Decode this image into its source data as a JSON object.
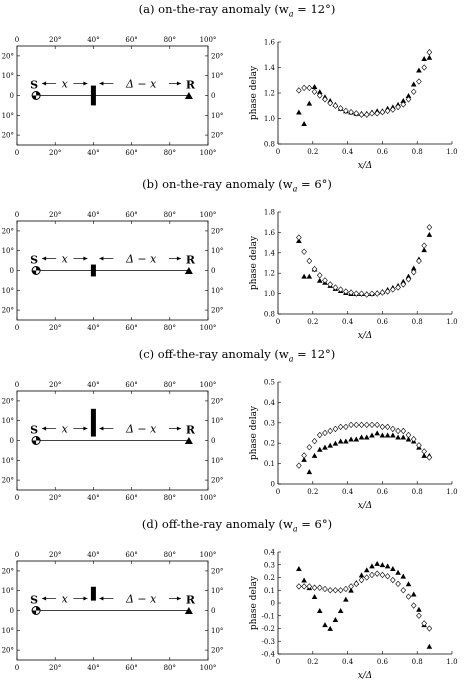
{
  "panels": [
    {
      "title": "(a) on-the-ray anomaly (w",
      "title_sub": "a",
      "title_tail": " = 12°)",
      "map": {
        "x_ticks": [
          "0",
          "20°",
          "40°",
          "60°",
          "80°",
          "100°"
        ],
        "y_ticks_left": [
          "20°",
          "10°",
          "0",
          "10°",
          "20°"
        ],
        "y_ticks_right": [
          "20°",
          "10°",
          "0",
          "10°",
          "20°"
        ],
        "source_label": "S",
        "receiver_label": "R",
        "left_distance_label": "x",
        "right_distance_label": "Δ − x",
        "anomaly": {
          "x": 40,
          "y_from": -5,
          "y_to": 5
        }
      }
    },
    {
      "title": "(b) on-the-ray anomaly (w",
      "title_sub": "a",
      "title_tail": " = 6°)",
      "map": {
        "x_ticks": [
          "0",
          "20°",
          "40°",
          "60°",
          "80°",
          "100°"
        ],
        "y_ticks_left": [
          "20°",
          "10°",
          "0",
          "10°",
          "20°"
        ],
        "y_ticks_right": [
          "20°",
          "10°",
          "0",
          "10°",
          "20°"
        ],
        "source_label": "S",
        "receiver_label": "R",
        "left_distance_label": "x",
        "right_distance_label": "Δ − x",
        "anomaly": {
          "x": 40,
          "y_from": -3,
          "y_to": 3
        }
      }
    },
    {
      "title": "(c) off-the-ray anomaly (w",
      "title_sub": "a",
      "title_tail": " = 12°)",
      "map": {
        "x_ticks": [
          "0",
          "20°",
          "40°",
          "60°",
          "80°",
          "100°"
        ],
        "y_ticks_left": [
          "20°",
          "10°",
          "0",
          "10°",
          "20°"
        ],
        "y_ticks_right": [
          "20°",
          "10°",
          "0",
          "10°",
          "20°"
        ],
        "source_label": "S",
        "receiver_label": "R",
        "left_distance_label": "x",
        "right_distance_label": "Δ − x",
        "anomaly": {
          "x": 40,
          "y_from": 2,
          "y_to": 16
        }
      }
    },
    {
      "title": "(d) off-the-ray anomaly (w",
      "title_sub": "a",
      "title_tail": " = 6°)",
      "map": {
        "x_ticks": [
          "0",
          "20°",
          "40°",
          "60°",
          "80°",
          "100°"
        ],
        "y_ticks_left": [
          "20°",
          "10°",
          "0",
          "10°",
          "20°"
        ],
        "y_ticks_right": [
          "20°",
          "10°",
          "0",
          "10°",
          "20°"
        ],
        "source_label": "S",
        "receiver_label": "R",
        "left_distance_label": "x",
        "right_distance_label": "Δ − x",
        "anomaly": {
          "x": 40,
          "y_from": 5,
          "y_to": 12
        }
      }
    }
  ],
  "chart_data": [
    {
      "type": "scatter",
      "xlabel": "x/Δ",
      "ylabel": "phase delay",
      "xlim": [
        0,
        1
      ],
      "ylim": [
        0.8,
        1.6
      ],
      "x_ticks": [
        0,
        0.2,
        0.4,
        0.6,
        0.8,
        1.0
      ],
      "x_tick_labels": [
        "0",
        "0.2",
        "0.4",
        "0.6",
        "0.8",
        "1.0"
      ],
      "y_ticks": [
        0.8,
        1.0,
        1.2,
        1.4,
        1.6
      ],
      "y_tick_labels": [
        "0.8",
        "1.0",
        "1.2",
        "1.4",
        "1.6"
      ],
      "series": [
        {
          "marker": "triangle",
          "x": [
            0.12,
            0.15,
            0.18,
            0.21,
            0.24,
            0.27,
            0.3,
            0.33,
            0.36,
            0.39,
            0.42,
            0.45,
            0.48,
            0.51,
            0.54,
            0.57,
            0.6,
            0.63,
            0.66,
            0.69,
            0.72,
            0.75,
            0.78,
            0.81,
            0.84,
            0.87
          ],
          "y": [
            1.05,
            0.96,
            1.12,
            1.25,
            1.21,
            1.17,
            1.14,
            1.11,
            1.08,
            1.06,
            1.05,
            1.04,
            1.04,
            1.04,
            1.05,
            1.06,
            1.06,
            1.08,
            1.09,
            1.11,
            1.14,
            1.18,
            1.27,
            1.38,
            1.47,
            1.48
          ]
        },
        {
          "marker": "diamond",
          "x": [
            0.12,
            0.15,
            0.18,
            0.21,
            0.24,
            0.27,
            0.3,
            0.33,
            0.36,
            0.39,
            0.42,
            0.45,
            0.48,
            0.51,
            0.54,
            0.57,
            0.6,
            0.63,
            0.66,
            0.69,
            0.72,
            0.75,
            0.78,
            0.81,
            0.84,
            0.87
          ],
          "y": [
            1.22,
            1.24,
            1.24,
            1.21,
            1.18,
            1.15,
            1.12,
            1.1,
            1.08,
            1.06,
            1.05,
            1.04,
            1.03,
            1.03,
            1.04,
            1.04,
            1.05,
            1.06,
            1.07,
            1.09,
            1.11,
            1.15,
            1.21,
            1.29,
            1.4,
            1.52
          ]
        }
      ]
    },
    {
      "type": "scatter",
      "xlabel": "x/Δ",
      "ylabel": "phase delay",
      "xlim": [
        0,
        1
      ],
      "ylim": [
        0.8,
        1.8
      ],
      "x_ticks": [
        0,
        0.2,
        0.4,
        0.6,
        0.8,
        1.0
      ],
      "x_tick_labels": [
        "0",
        "0.2",
        "0.4",
        "0.6",
        "0.8",
        "1.0"
      ],
      "y_ticks": [
        0.8,
        1.0,
        1.2,
        1.4,
        1.6,
        1.8
      ],
      "y_tick_labels": [
        "0.8",
        "1.0",
        "1.2",
        "1.4",
        "1.6",
        "1.8"
      ],
      "series": [
        {
          "marker": "triangle",
          "x": [
            0.12,
            0.15,
            0.18,
            0.21,
            0.24,
            0.27,
            0.3,
            0.33,
            0.36,
            0.39,
            0.42,
            0.45,
            0.48,
            0.51,
            0.54,
            0.57,
            0.6,
            0.63,
            0.66,
            0.69,
            0.72,
            0.75,
            0.78,
            0.81,
            0.84,
            0.87
          ],
          "y": [
            1.52,
            1.17,
            1.17,
            1.24,
            1.13,
            1.11,
            1.08,
            1.05,
            1.03,
            1.01,
            1.0,
            1.0,
            1.0,
            1.0,
            1.0,
            1.01,
            1.02,
            1.04,
            1.06,
            1.08,
            1.12,
            1.17,
            1.25,
            1.34,
            1.43,
            1.58
          ]
        },
        {
          "marker": "diamond",
          "x": [
            0.12,
            0.15,
            0.18,
            0.21,
            0.24,
            0.27,
            0.3,
            0.33,
            0.36,
            0.39,
            0.42,
            0.45,
            0.48,
            0.51,
            0.54,
            0.57,
            0.6,
            0.63,
            0.66,
            0.69,
            0.72,
            0.75,
            0.78,
            0.81,
            0.84,
            0.87
          ],
          "y": [
            1.55,
            1.41,
            1.32,
            1.24,
            1.18,
            1.13,
            1.09,
            1.06,
            1.04,
            1.02,
            1.01,
            1.0,
            1.0,
            0.99,
            1.0,
            1.0,
            1.01,
            1.02,
            1.04,
            1.06,
            1.09,
            1.14,
            1.21,
            1.32,
            1.47,
            1.65
          ]
        }
      ]
    },
    {
      "type": "scatter",
      "xlabel": "x/Δ",
      "ylabel": "phase delay",
      "xlim": [
        0,
        1
      ],
      "ylim": [
        0,
        0.5
      ],
      "x_ticks": [
        0,
        0.2,
        0.4,
        0.6,
        0.8,
        1.0
      ],
      "x_tick_labels": [
        "0",
        "0.2",
        "0.4",
        "0.6",
        "0.8",
        "1.0"
      ],
      "y_ticks": [
        0,
        0.1,
        0.2,
        0.3,
        0.4,
        0.5
      ],
      "y_tick_labels": [
        "0",
        "0.1",
        "0.2",
        "0.3",
        "0.4",
        "0.5"
      ],
      "series": [
        {
          "marker": "triangle",
          "x": [
            0.15,
            0.18,
            0.21,
            0.24,
            0.27,
            0.3,
            0.33,
            0.36,
            0.39,
            0.42,
            0.45,
            0.48,
            0.51,
            0.54,
            0.57,
            0.6,
            0.63,
            0.66,
            0.69,
            0.72,
            0.75,
            0.78,
            0.81,
            0.84,
            0.87
          ],
          "y": [
            0.12,
            0.06,
            0.14,
            0.17,
            0.18,
            0.19,
            0.2,
            0.21,
            0.21,
            0.22,
            0.22,
            0.23,
            0.23,
            0.24,
            0.25,
            0.24,
            0.24,
            0.24,
            0.23,
            0.23,
            0.22,
            0.21,
            0.18,
            0.14,
            0.14
          ]
        },
        {
          "marker": "diamond",
          "x": [
            0.12,
            0.15,
            0.18,
            0.21,
            0.24,
            0.27,
            0.3,
            0.33,
            0.36,
            0.39,
            0.42,
            0.45,
            0.48,
            0.51,
            0.54,
            0.57,
            0.6,
            0.63,
            0.66,
            0.69,
            0.72,
            0.75,
            0.78,
            0.81,
            0.84,
            0.87
          ],
          "y": [
            0.09,
            0.14,
            0.18,
            0.21,
            0.24,
            0.25,
            0.26,
            0.27,
            0.28,
            0.28,
            0.29,
            0.29,
            0.29,
            0.29,
            0.29,
            0.29,
            0.28,
            0.28,
            0.27,
            0.26,
            0.26,
            0.24,
            0.22,
            0.19,
            0.16,
            0.13
          ]
        }
      ]
    },
    {
      "type": "scatter",
      "xlabel": "x/Δ",
      "ylabel": "phase delay",
      "xlim": [
        0,
        1
      ],
      "ylim": [
        -0.4,
        0.4
      ],
      "x_ticks": [
        0,
        0.2,
        0.4,
        0.6,
        0.8,
        1.0
      ],
      "x_tick_labels": [
        "0",
        "0.2",
        "0.4",
        "0.6",
        "0.8",
        "1.0"
      ],
      "y_ticks": [
        -0.4,
        -0.3,
        -0.2,
        -0.1,
        0,
        0.1,
        0.2,
        0.3,
        0.4
      ],
      "y_tick_labels": [
        "-0.4",
        "-0.3",
        "-0.2",
        "-0.1",
        "0",
        "0.1",
        "0.2",
        "0.3",
        "0.4"
      ],
      "series": [
        {
          "marker": "triangle",
          "x": [
            0.12,
            0.15,
            0.18,
            0.21,
            0.24,
            0.27,
            0.3,
            0.33,
            0.36,
            0.39,
            0.42,
            0.45,
            0.48,
            0.51,
            0.54,
            0.57,
            0.6,
            0.63,
            0.66,
            0.69,
            0.72,
            0.75,
            0.78,
            0.81,
            0.84,
            0.87
          ],
          "y": [
            0.27,
            0.18,
            0.12,
            0.05,
            -0.06,
            -0.17,
            -0.2,
            -0.13,
            -0.06,
            0.03,
            0.1,
            0.16,
            0.22,
            0.26,
            0.29,
            0.31,
            0.3,
            0.29,
            0.27,
            0.24,
            0.21,
            0.15,
            0.07,
            -0.05,
            -0.17,
            -0.34
          ]
        },
        {
          "marker": "diamond",
          "x": [
            0.12,
            0.15,
            0.18,
            0.21,
            0.24,
            0.27,
            0.3,
            0.33,
            0.36,
            0.39,
            0.42,
            0.45,
            0.48,
            0.51,
            0.54,
            0.57,
            0.6,
            0.63,
            0.66,
            0.69,
            0.72,
            0.75,
            0.78,
            0.81,
            0.84,
            0.87
          ],
          "y": [
            0.13,
            0.13,
            0.13,
            0.12,
            0.12,
            0.11,
            0.1,
            0.1,
            0.1,
            0.11,
            0.13,
            0.15,
            0.18,
            0.2,
            0.22,
            0.23,
            0.22,
            0.21,
            0.18,
            0.15,
            0.1,
            0.05,
            -0.02,
            -0.1,
            -0.16,
            -0.2
          ]
        }
      ]
    }
  ]
}
